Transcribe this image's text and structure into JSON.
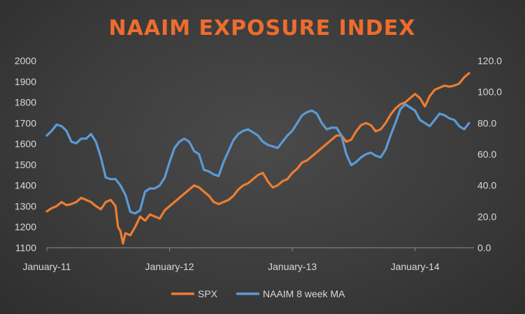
{
  "chart_data": {
    "type": "line",
    "title": "NAAIM EXPOSURE INDEX",
    "grid": false,
    "legend_position": "bottom",
    "x_tick_labels": [
      "January-11",
      "January-12",
      "January-13",
      "January-14"
    ],
    "y_left": {
      "range": [
        1100,
        2000
      ],
      "ticks": [
        "1100",
        "1200",
        "1300",
        "1400",
        "1500",
        "1600",
        "1700",
        "1800",
        "1900",
        "2000"
      ]
    },
    "y_right": {
      "range": [
        0,
        120
      ],
      "ticks": [
        "0.0",
        "20.0",
        "40.0",
        "60.0",
        "80.0",
        "100.0",
        "120.0"
      ]
    },
    "series": [
      {
        "name": "SPX",
        "axis": "left",
        "color": "#ed7d31",
        "x": [
          2011.0,
          2011.04,
          2011.08,
          2011.12,
          2011.16,
          2011.2,
          2011.24,
          2011.28,
          2011.32,
          2011.36,
          2011.4,
          2011.44,
          2011.48,
          2011.52,
          2011.56,
          2011.58,
          2011.6,
          2011.62,
          2011.64,
          2011.68,
          2011.72,
          2011.76,
          2011.8,
          2011.84,
          2011.88,
          2011.92,
          2011.96,
          2012.0,
          2012.04,
          2012.08,
          2012.12,
          2012.16,
          2012.2,
          2012.24,
          2012.28,
          2012.32,
          2012.36,
          2012.4,
          2012.44,
          2012.48,
          2012.52,
          2012.56,
          2012.6,
          2012.64,
          2012.68,
          2012.72,
          2012.76,
          2012.8,
          2012.84,
          2012.88,
          2012.92,
          2012.96,
          2013.0,
          2013.04,
          2013.08,
          2013.12,
          2013.16,
          2013.2,
          2013.24,
          2013.28,
          2013.32,
          2013.36,
          2013.4,
          2013.44,
          2013.48,
          2013.52,
          2013.56,
          2013.6,
          2013.64,
          2013.68,
          2013.72,
          2013.76,
          2013.8,
          2013.84,
          2013.88,
          2013.92,
          2013.96,
          2014.0,
          2014.04,
          2014.08,
          2014.12,
          2014.16,
          2014.2,
          2014.24,
          2014.28,
          2014.32,
          2014.36,
          2014.4,
          2014.44
        ],
        "values": [
          1275,
          1290,
          1300,
          1320,
          1305,
          1310,
          1320,
          1340,
          1330,
          1320,
          1300,
          1285,
          1320,
          1330,
          1300,
          1200,
          1180,
          1120,
          1170,
          1160,
          1200,
          1250,
          1230,
          1260,
          1250,
          1240,
          1280,
          1300,
          1320,
          1340,
          1360,
          1380,
          1400,
          1390,
          1370,
          1350,
          1320,
          1310,
          1320,
          1330,
          1350,
          1380,
          1400,
          1410,
          1430,
          1450,
          1460,
          1420,
          1390,
          1400,
          1420,
          1430,
          1460,
          1480,
          1510,
          1520,
          1540,
          1560,
          1580,
          1600,
          1620,
          1640,
          1640,
          1610,
          1620,
          1660,
          1690,
          1700,
          1690,
          1660,
          1670,
          1700,
          1740,
          1770,
          1790,
          1800,
          1820,
          1840,
          1820,
          1780,
          1830,
          1860,
          1870,
          1880,
          1875,
          1880,
          1890,
          1920,
          1940
        ]
      },
      {
        "name": "NAAIM 8 week MA",
        "axis": "right",
        "color": "#5b9bd5",
        "x": [
          2011.0,
          2011.04,
          2011.08,
          2011.12,
          2011.16,
          2011.2,
          2011.24,
          2011.28,
          2011.32,
          2011.36,
          2011.4,
          2011.44,
          2011.48,
          2011.52,
          2011.56,
          2011.6,
          2011.64,
          2011.68,
          2011.72,
          2011.76,
          2011.8,
          2011.84,
          2011.88,
          2011.92,
          2011.96,
          2012.0,
          2012.04,
          2012.08,
          2012.12,
          2012.16,
          2012.2,
          2012.24,
          2012.28,
          2012.32,
          2012.36,
          2012.4,
          2012.44,
          2012.48,
          2012.52,
          2012.56,
          2012.6,
          2012.64,
          2012.68,
          2012.72,
          2012.76,
          2012.8,
          2012.84,
          2012.88,
          2012.92,
          2012.96,
          2013.0,
          2013.04,
          2013.08,
          2013.12,
          2013.16,
          2013.2,
          2013.24,
          2013.28,
          2013.32,
          2013.36,
          2013.4,
          2013.44,
          2013.48,
          2013.52,
          2013.56,
          2013.6,
          2013.64,
          2013.68,
          2013.72,
          2013.76,
          2013.8,
          2013.84,
          2013.88,
          2013.92,
          2013.96,
          2014.0,
          2014.04,
          2014.08,
          2014.12,
          2014.16,
          2014.2,
          2014.24,
          2014.28,
          2014.32,
          2014.36,
          2014.4,
          2014.44
        ],
        "values": [
          72,
          75,
          79,
          78,
          75,
          68,
          67,
          70,
          70,
          73,
          68,
          58,
          45,
          44,
          44,
          40,
          34,
          23,
          22,
          24,
          36,
          38,
          38,
          40,
          45,
          55,
          64,
          68,
          70,
          68,
          62,
          60,
          50,
          49,
          47,
          46,
          55,
          62,
          69,
          73,
          75,
          76,
          74,
          72,
          68,
          66,
          65,
          64,
          68,
          72,
          75,
          80,
          85,
          87,
          88,
          86,
          80,
          76,
          77,
          77,
          72,
          60,
          53,
          55,
          58,
          60,
          61,
          59,
          58,
          63,
          72,
          80,
          89,
          92,
          90,
          88,
          82,
          80,
          78,
          82,
          86,
          85,
          83,
          82,
          78,
          76,
          80
        ]
      }
    ]
  },
  "legend": {
    "items": [
      {
        "label": "SPX",
        "color": "#ed7d31",
        "icon": "line-swatch-icon"
      },
      {
        "label": "NAAIM 8 week MA",
        "color": "#5b9bd5",
        "icon": "line-swatch-icon"
      }
    ]
  }
}
